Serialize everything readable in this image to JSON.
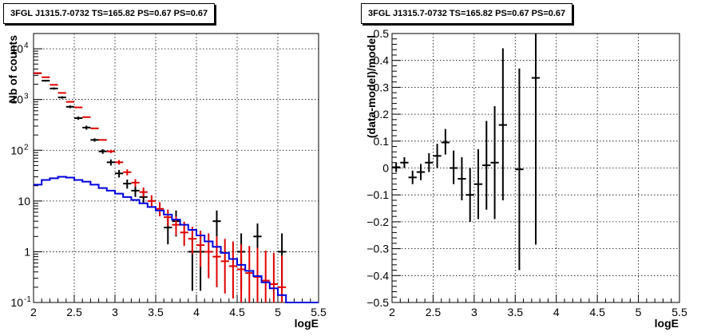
{
  "chart_data": [
    {
      "type": "line",
      "title": "3FGL J1315.7-0732 TS=165.82 PS=0.67 PS=0.67",
      "xlabel": "logE",
      "ylabel": "Nb of counts",
      "xlim": [
        2,
        5.5
      ],
      "ylim": [
        0.1,
        20000
      ],
      "yscale": "log",
      "grid": true,
      "x_ticks": [
        "2",
        "2.5",
        "3",
        "3.5",
        "4",
        "4.5",
        "5",
        "5.5"
      ],
      "y_ticks": [
        {
          "v": 0.1,
          "mant": "10",
          "exp": "-1"
        },
        {
          "v": 1,
          "mant": "1",
          "exp": ""
        },
        {
          "v": 10,
          "mant": "10",
          "exp": ""
        },
        {
          "v": 100,
          "mant": "10",
          "exp": "2"
        },
        {
          "v": 1000,
          "mant": "10",
          "exp": "3"
        },
        {
          "v": 10000,
          "mant": "10",
          "exp": "4"
        }
      ],
      "bin_edges": [
        2,
        2.1,
        2.2,
        2.3,
        2.4,
        2.5,
        2.6,
        2.7,
        2.8,
        2.9,
        3.0,
        3.1,
        3.2,
        3.3,
        3.4,
        3.5,
        3.6,
        3.7,
        3.8,
        3.9,
        4.0,
        4.1,
        4.2,
        4.3,
        4.4,
        4.5,
        4.6,
        4.7,
        4.8,
        4.9,
        5.0,
        5.1,
        5.2,
        5.3,
        5.4,
        5.5
      ],
      "series": [
        {
          "color": "#000000",
          "style": "errorbar",
          "points": [
            {
              "x": 2.05,
              "y": 3300,
              "lo": 3180,
              "hi": 3420
            },
            {
              "x": 2.15,
              "y": 2350,
              "lo": 2250,
              "hi": 2450
            },
            {
              "x": 2.25,
              "y": 1650,
              "lo": 1570,
              "hi": 1730
            },
            {
              "x": 2.35,
              "y": 1100,
              "lo": 1040,
              "hi": 1160
            },
            {
              "x": 2.45,
              "y": 720,
              "lo": 675,
              "hi": 765
            },
            {
              "x": 2.55,
              "y": 430,
              "lo": 398,
              "hi": 462
            },
            {
              "x": 2.65,
              "y": 280,
              "lo": 254,
              "hi": 306
            },
            {
              "x": 2.75,
              "y": 160,
              "lo": 148,
              "hi": 172
            },
            {
              "x": 2.85,
              "y": 95,
              "lo": 85,
              "hi": 105
            },
            {
              "x": 2.95,
              "y": 58,
              "lo": 50,
              "hi": 66
            },
            {
              "x": 3.05,
              "y": 35,
              "lo": 29,
              "hi": 41
            },
            {
              "x": 3.15,
              "y": 22,
              "lo": 17.5,
              "hi": 26.5
            },
            {
              "x": 3.25,
              "y": 16,
              "lo": 12,
              "hi": 20
            },
            {
              "x": 3.35,
              "y": 12,
              "lo": 9,
              "hi": 16
            },
            {
              "x": 3.65,
              "y": 3,
              "lo": 1.4,
              "hi": 5
            },
            {
              "x": 3.75,
              "y": 4,
              "lo": 2,
              "hi": 6.5
            },
            {
              "x": 3.95,
              "y": 1,
              "lo": 0.17,
              "hi": 2.3
            },
            {
              "x": 4.05,
              "y": 1,
              "lo": 0.17,
              "hi": 2.3
            },
            {
              "x": 4.25,
              "y": 4,
              "lo": 2,
              "hi": 6.5
            },
            {
              "x": 4.55,
              "y": 1,
              "lo": 0.17,
              "hi": 2.3
            },
            {
              "x": 4.75,
              "y": 2,
              "lo": 0.7,
              "hi": 3.6
            },
            {
              "x": 5.05,
              "y": 1,
              "lo": 0.17,
              "hi": 2.3
            }
          ]
        },
        {
          "color": "#e10000",
          "style": "errorbar",
          "points": [
            {
              "x": 2.05,
              "y": 3300,
              "lo": 3300,
              "hi": 3300
            },
            {
              "x": 2.15,
              "y": 2750,
              "lo": 2750,
              "hi": 2750
            },
            {
              "x": 2.25,
              "y": 1950,
              "lo": 1950,
              "hi": 1950
            },
            {
              "x": 2.35,
              "y": 1350,
              "lo": 1350,
              "hi": 1350
            },
            {
              "x": 2.45,
              "y": 900,
              "lo": 900,
              "hi": 900
            },
            {
              "x": 2.55,
              "y": 700,
              "lo": 700,
              "hi": 700
            },
            {
              "x": 2.65,
              "y": 450,
              "lo": 450,
              "hi": 450
            },
            {
              "x": 2.75,
              "y": 270,
              "lo": 270,
              "hi": 270
            },
            {
              "x": 2.85,
              "y": 160,
              "lo": 160,
              "hi": 160
            },
            {
              "x": 2.95,
              "y": 95,
              "lo": 88,
              "hi": 102
            },
            {
              "x": 3.05,
              "y": 58,
              "lo": 52,
              "hi": 64
            },
            {
              "x": 3.15,
              "y": 37,
              "lo": 32,
              "hi": 42
            },
            {
              "x": 3.25,
              "y": 23,
              "lo": 19,
              "hi": 27
            },
            {
              "x": 3.35,
              "y": 15,
              "lo": 12,
              "hi": 18.5
            },
            {
              "x": 3.45,
              "y": 10,
              "lo": 7.5,
              "hi": 13
            },
            {
              "x": 3.55,
              "y": 7,
              "lo": 5,
              "hi": 9.5
            },
            {
              "x": 3.65,
              "y": 4.8,
              "lo": 3.2,
              "hi": 6.8
            },
            {
              "x": 3.75,
              "y": 3.4,
              "lo": 2.1,
              "hi": 5
            },
            {
              "x": 3.85,
              "y": 2.4,
              "lo": 1.3,
              "hi": 3.9
            },
            {
              "x": 3.95,
              "y": 1.8,
              "lo": 0.9,
              "hi": 3.1
            },
            {
              "x": 4.05,
              "y": 1.35,
              "lo": 0.5,
              "hi": 2.6
            },
            {
              "x": 4.15,
              "y": 1.0,
              "lo": 0.3,
              "hi": 2.3
            },
            {
              "x": 4.25,
              "y": 0.8,
              "lo": 0.2,
              "hi": 2.0
            },
            {
              "x": 4.35,
              "y": 0.65,
              "lo": 0.15,
              "hi": 1.8
            },
            {
              "x": 4.45,
              "y": 0.52,
              "lo": 0.12,
              "hi": 1.6
            },
            {
              "x": 4.55,
              "y": 0.45,
              "lo": 0.1,
              "hi": 1.4
            },
            {
              "x": 4.65,
              "y": 0.38,
              "lo": 0.1,
              "hi": 1.3
            },
            {
              "x": 4.75,
              "y": 0.32,
              "lo": 0.1,
              "hi": 1.2
            },
            {
              "x": 4.85,
              "y": 0.27,
              "lo": 0.1,
              "hi": 1.05
            },
            {
              "x": 4.95,
              "y": 0.23,
              "lo": 0.1,
              "hi": 0.95
            },
            {
              "x": 5.05,
              "y": 0.2,
              "lo": 0.1,
              "hi": 0.85
            }
          ]
        },
        {
          "color": "#0000dd",
          "style": "step",
          "values": [
            21,
            26,
            28,
            30,
            29,
            26,
            24,
            21,
            18,
            16,
            14,
            12,
            10.5,
            9,
            7.6,
            6.5,
            5.4,
            4.3,
            3.4,
            2.7,
            2.1,
            1.6,
            1.25,
            0.95,
            0.72,
            0.55,
            0.42,
            0.33,
            0.25,
            0.19,
            0.14,
            0.1,
            0.1,
            0.1,
            0.1
          ]
        }
      ]
    },
    {
      "type": "scatter",
      "title": "3FGL J1315.7-0732 TS=165.82 PS=0.67 PS=0.67",
      "xlabel": "logE",
      "ylabel": "(data-model)/model",
      "xlim": [
        2,
        5.5
      ],
      "ylim": [
        -0.5,
        0.5
      ],
      "grid": true,
      "x_ticks": [
        "2",
        "2.5",
        "3",
        "3.5",
        "4",
        "4.5",
        "5",
        "5.5"
      ],
      "y_ticks": [
        {
          "v": -0.5,
          "label": "−0.5"
        },
        {
          "v": -0.4,
          "label": "−0.4"
        },
        {
          "v": -0.3,
          "label": "−0.3"
        },
        {
          "v": -0.2,
          "label": "−0.2"
        },
        {
          "v": -0.1,
          "label": "−0.1"
        },
        {
          "v": 0,
          "label": "0"
        },
        {
          "v": 0.1,
          "label": "0.1"
        },
        {
          "v": 0.2,
          "label": "0.2"
        },
        {
          "v": 0.3,
          "label": "0.3"
        },
        {
          "v": 0.4,
          "label": "0.4"
        },
        {
          "v": 0.5,
          "label": "0.5"
        }
      ],
      "series": [
        {
          "color": "#000000",
          "style": "errorbar",
          "points": [
            {
              "x": 2.05,
              "y": 0.003,
              "lo": -0.015,
              "hi": 0.02
            },
            {
              "x": 2.15,
              "y": 0.02,
              "lo": 0.0,
              "hi": 0.04
            },
            {
              "x": 2.25,
              "y": -0.035,
              "lo": -0.06,
              "hi": -0.01
            },
            {
              "x": 2.35,
              "y": -0.015,
              "lo": -0.045,
              "hi": 0.015
            },
            {
              "x": 2.45,
              "y": 0.02,
              "lo": -0.015,
              "hi": 0.055
            },
            {
              "x": 2.55,
              "y": 0.045,
              "lo": 0.0,
              "hi": 0.09
            },
            {
              "x": 2.65,
              "y": 0.095,
              "lo": 0.05,
              "hi": 0.145
            },
            {
              "x": 2.75,
              "y": 0.0,
              "lo": -0.06,
              "hi": 0.065
            },
            {
              "x": 2.85,
              "y": -0.04,
              "lo": -0.12,
              "hi": 0.04
            },
            {
              "x": 2.95,
              "y": -0.1,
              "lo": -0.2,
              "hi": 0.0
            },
            {
              "x": 3.05,
              "y": -0.06,
              "lo": -0.19,
              "hi": 0.07
            },
            {
              "x": 3.15,
              "y": 0.01,
              "lo": -0.155,
              "hi": 0.175
            },
            {
              "x": 3.25,
              "y": 0.02,
              "lo": -0.19,
              "hi": 0.23
            },
            {
              "x": 3.35,
              "y": 0.16,
              "lo": -0.12,
              "hi": 0.445
            },
            {
              "x": 3.55,
              "y": -0.005,
              "lo": -0.38,
              "hi": 0.37
            },
            {
              "x": 3.75,
              "y": 0.335,
              "lo": -0.285,
              "hi": 0.5
            }
          ]
        }
      ]
    }
  ]
}
